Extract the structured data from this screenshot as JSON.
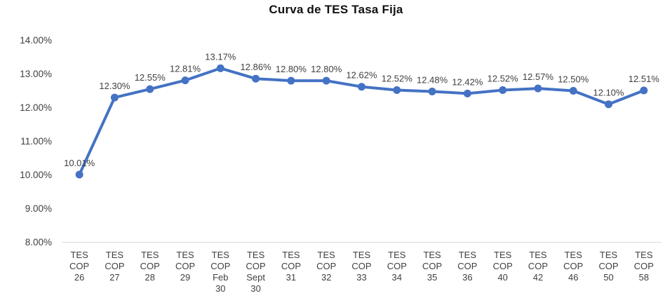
{
  "chart_data": {
    "type": "line",
    "title": "Curva de TES Tasa Fija",
    "categories": [
      "TES COP 26",
      "TES COP 27",
      "TES COP 28",
      "TES COP 29",
      "TES COP Feb 30",
      "TES COP Sept 30",
      "TES COP 31",
      "TES COP 32",
      "TES COP 33",
      "TES COP 34",
      "TES COP 35",
      "TES COP 36",
      "TES COP 40",
      "TES COP 42",
      "TES COP 46",
      "TES COP 50",
      "TES COP 58"
    ],
    "values": [
      10.01,
      12.3,
      12.55,
      12.81,
      13.17,
      12.86,
      12.8,
      12.8,
      12.62,
      12.52,
      12.48,
      12.42,
      12.52,
      12.57,
      12.5,
      12.1,
      12.51
    ],
    "data_labels": [
      "10.01%",
      "12.30%",
      "12.55%",
      "12.81%",
      "13.17%",
      "12.86%",
      "12.80%",
      "12.80%",
      "12.62%",
      "12.52%",
      "12.48%",
      "12.42%",
      "12.52%",
      "12.57%",
      "12.50%",
      "12.10%",
      "12.51%"
    ],
    "xlabel": "",
    "ylabel": "",
    "ylim": [
      8,
      14
    ],
    "yticks": [
      {
        "value": 8,
        "label": "8.00%"
      },
      {
        "value": 9,
        "label": "9.00%"
      },
      {
        "value": 10,
        "label": "10.00%"
      },
      {
        "value": 11,
        "label": "11.00%"
      },
      {
        "value": 12,
        "label": "12.00%"
      },
      {
        "value": 13,
        "label": "13.00%"
      },
      {
        "value": 14,
        "label": "14.00%"
      }
    ],
    "grid": "off",
    "legend": "none",
    "colors": {
      "line": "#4472C4",
      "marker": "#4472C4",
      "axis_line": "#D9D9D9",
      "tick_label": "#404040",
      "data_label": "#404040",
      "title": "#111111",
      "background": "#FFFFFF"
    }
  }
}
